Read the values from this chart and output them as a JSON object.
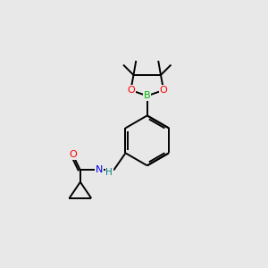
{
  "background_color": "#e8e8e8",
  "bond_color": "#000000",
  "atom_colors": {
    "O": "#ff0000",
    "B": "#00bb00",
    "N": "#0000ee",
    "H": "#008080",
    "C": "#000000"
  },
  "line_width": 1.4,
  "figsize": [
    3.0,
    3.0
  ],
  "dpi": 100
}
